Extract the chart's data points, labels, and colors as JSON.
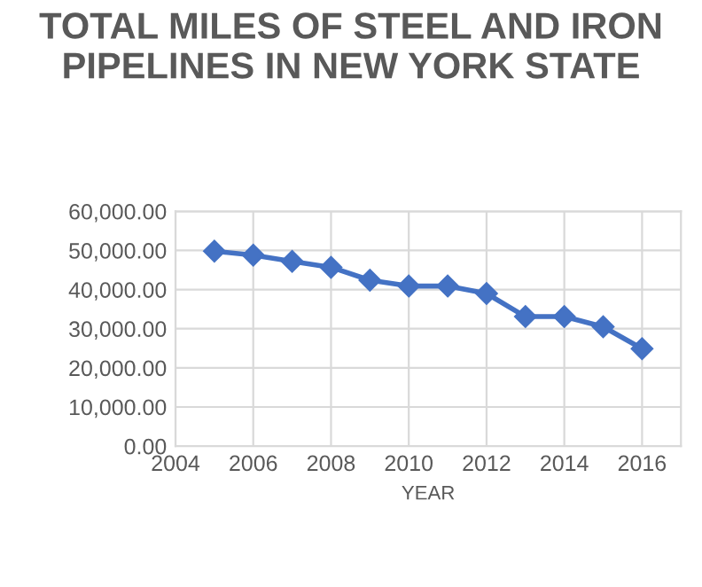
{
  "chart_data": {
    "type": "line",
    "title": "TOTAL MILES OF STEEL AND IRON PIPELINES IN NEW YORK STATE",
    "xlabel": "YEAR",
    "x": [
      2005,
      2006,
      2007,
      2008,
      2009,
      2010,
      2011,
      2012,
      2013,
      2014,
      2015,
      2016
    ],
    "series": [
      {
        "color": "#4472c4",
        "values": [
          49800,
          48800,
          47200,
          45700,
          42400,
          40900,
          40900,
          39000,
          33100,
          33100,
          30500,
          24900
        ]
      }
    ],
    "xlim": [
      2004,
      2017
    ],
    "xticks": [
      2004,
      2006,
      2008,
      2010,
      2012,
      2014,
      2016
    ],
    "ylim": [
      0,
      60000
    ],
    "yticks": [
      {
        "value": 0,
        "label": "0.00"
      },
      {
        "value": 10000,
        "label": "10,000.00"
      },
      {
        "value": 20000,
        "label": "20,000.00"
      },
      {
        "value": 30000,
        "label": "30,000.00"
      },
      {
        "value": 40000,
        "label": "40,000.00"
      },
      {
        "value": 50000,
        "label": "50,000.00"
      },
      {
        "value": 60000,
        "label": "60,000.00"
      }
    ],
    "grid": true,
    "marker": "diamond",
    "line_style": "solid"
  }
}
